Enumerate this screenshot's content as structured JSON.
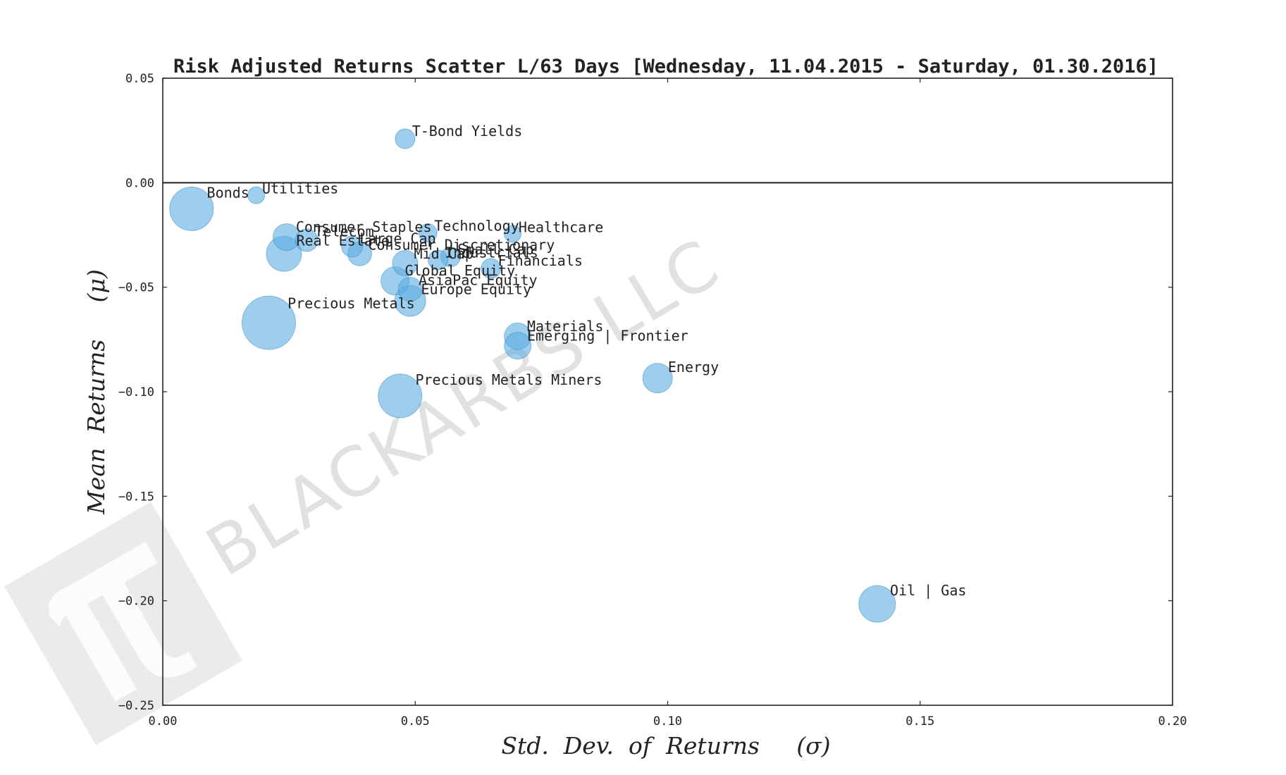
{
  "chart_data": {
    "type": "scatter",
    "title": "Risk Adjusted Returns Scatter L/63 Days [Wednesday, 11.04.2015 - Saturday, 01.30.2016]",
    "xlabel": "Std.  Dev.  of  Returns     (σ)",
    "ylabel": "Mean  Returns     (μ)",
    "xlim": [
      0.0,
      0.2
    ],
    "ylim": [
      -0.25,
      0.05
    ],
    "xticks": [
      "0.00",
      "0.05",
      "0.10",
      "0.15",
      "0.20"
    ],
    "yticks": [
      "0.05",
      "0.00",
      "−0.05",
      "−0.10",
      "−0.15",
      "−0.20",
      "−0.25"
    ],
    "color": "#5dade2",
    "watermark": "BLACKARBS LLC",
    "points": [
      {
        "label": "T-Bond Yields",
        "x": 0.048,
        "y": 0.021,
        "size": 14
      },
      {
        "label": "Utilities",
        "x": 0.0185,
        "y": -0.006,
        "size": 12
      },
      {
        "label": "Bonds",
        "x": 0.0057,
        "y": -0.0125,
        "size": 31
      },
      {
        "label": "Consumer Staples",
        "x": 0.0245,
        "y": -0.026,
        "size": 19
      },
      {
        "label": "Telecom",
        "x": 0.0285,
        "y": -0.0275,
        "size": 16
      },
      {
        "label": "Large Cap",
        "x": 0.0375,
        "y": -0.0305,
        "size": 15
      },
      {
        "label": "Real Estate",
        "x": 0.024,
        "y": -0.034,
        "size": 25
      },
      {
        "label": "Consumer Discretionary",
        "x": 0.039,
        "y": -0.034,
        "size": 17
      },
      {
        "label": "Technology",
        "x": 0.0525,
        "y": -0.024,
        "size": 13
      },
      {
        "label": "Healthcare",
        "x": 0.0693,
        "y": -0.0245,
        "size": 12
      },
      {
        "label": "Small Cap",
        "x": 0.057,
        "y": -0.0355,
        "size": 14
      },
      {
        "label": "Mid Cap",
        "x": 0.048,
        "y": -0.0385,
        "size": 18
      },
      {
        "label": "Industrials",
        "x": 0.0545,
        "y": -0.037,
        "size": 14
      },
      {
        "label": "Financials",
        "x": 0.065,
        "y": -0.041,
        "size": 14
      },
      {
        "label": "Global Equity",
        "x": 0.046,
        "y": -0.047,
        "size": 20
      },
      {
        "label": "AsiaPac Equity",
        "x": 0.049,
        "y": -0.051,
        "size": 17
      },
      {
        "label": "Europe Equity",
        "x": 0.049,
        "y": -0.0565,
        "size": 22
      },
      {
        "label": "Precious Metals",
        "x": 0.021,
        "y": -0.067,
        "size": 38
      },
      {
        "label": "Materials",
        "x": 0.0703,
        "y": -0.0735,
        "size": 19
      },
      {
        "label": "Emerging | Frontier",
        "x": 0.0703,
        "y": -0.078,
        "size": 19
      },
      {
        "label": "Energy",
        "x": 0.098,
        "y": -0.0935,
        "size": 21
      },
      {
        "label": "Precious Metals Miners",
        "x": 0.047,
        "y": -0.102,
        "size": 31
      },
      {
        "label": "Oil | Gas",
        "x": 0.1415,
        "y": -0.2015,
        "size": 26
      }
    ]
  }
}
